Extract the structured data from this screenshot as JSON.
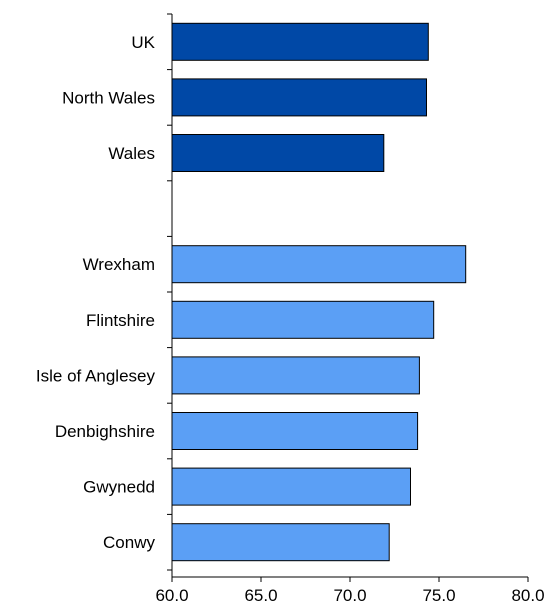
{
  "chart_data": {
    "type": "bar",
    "orientation": "horizontal",
    "title": "",
    "xlabel": "",
    "ylabel": "",
    "xlim": [
      60,
      80
    ],
    "x_ticks": [
      60,
      65,
      70,
      75,
      80
    ],
    "x_tick_labels": [
      "60.0",
      "65.0",
      "70.0",
      "75.0",
      "80.0"
    ],
    "grid": false,
    "legend": "none",
    "groups": [
      {
        "color": "#0048a6",
        "categories": [
          "UK",
          "North Wales",
          "Wales"
        ],
        "values": [
          74.4,
          74.3,
          71.9
        ]
      },
      {
        "color": "#5b9ff5",
        "categories": [
          "Wrexham",
          "Flintshire",
          "Isle of Anglesey",
          "Denbighshire",
          "Gwynedd",
          "Conwy"
        ],
        "values": [
          76.5,
          74.7,
          73.9,
          73.8,
          73.4,
          72.2
        ]
      }
    ]
  }
}
